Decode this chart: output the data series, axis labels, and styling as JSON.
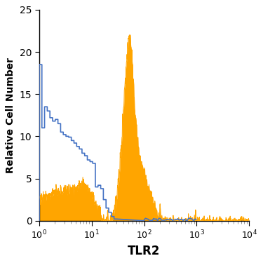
{
  "title": "",
  "xlabel": "TLR2",
  "ylabel": "Relative Cell Number",
  "xlim_log": [
    1,
    10000
  ],
  "ylim": [
    0,
    25
  ],
  "yticks": [
    0,
    5,
    10,
    15,
    20,
    25
  ],
  "background_color": "#ffffff",
  "orange_color": "#FFA500",
  "blue_color": "#4472C4",
  "linewidth_blue": 1.2,
  "linewidth_orange": 0.7
}
